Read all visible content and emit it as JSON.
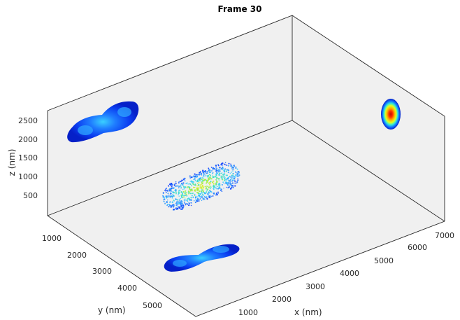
{
  "chart_data": {
    "type": "3d-scatter",
    "title": "Frame 30",
    "xlabel": "x (nm)",
    "ylabel": "y (nm)",
    "zlabel": "z (nm)",
    "xlim": [
      0,
      7000
    ],
    "ylim": [
      0,
      6000
    ],
    "zlim": [
      0,
      3000
    ],
    "x_ticks": [
      "1000",
      "2000",
      "3000",
      "4000",
      "5000",
      "6000",
      "7000"
    ],
    "y_ticks": [
      "1000",
      "2000",
      "3000",
      "4000",
      "5000"
    ],
    "z_ticks": [
      "500",
      "1000",
      "1500",
      "2000",
      "2500"
    ],
    "x_tick_values": [
      1000,
      2000,
      3000,
      4000,
      5000,
      6000,
      7000
    ],
    "y_tick_values": [
      1000,
      2000,
      3000,
      4000,
      5000
    ],
    "z_tick_values": [
      500,
      1000,
      1500,
      2000,
      2500
    ],
    "grid": false,
    "background": "#f0f0f0",
    "colormap": "jet",
    "point_cloud": {
      "description": "3D point cloud of a dumbbell-shaped object",
      "center": [
        3000,
        2200,
        1100
      ],
      "extent_nm": [
        2600,
        900,
        800
      ]
    },
    "projections": [
      {
        "plane": "xy (floor, z=0)",
        "center": [
          3000,
          5000
        ],
        "shape": "peanut"
      },
      {
        "plane": "yz (x=0 wall)",
        "center": [
          2200,
          1900
        ],
        "shape": "peanut"
      },
      {
        "plane": "xz (y=0 wall)",
        "center": [
          7000,
          1900
        ],
        "shape": "blob",
        "peak_color": "red"
      }
    ]
  }
}
